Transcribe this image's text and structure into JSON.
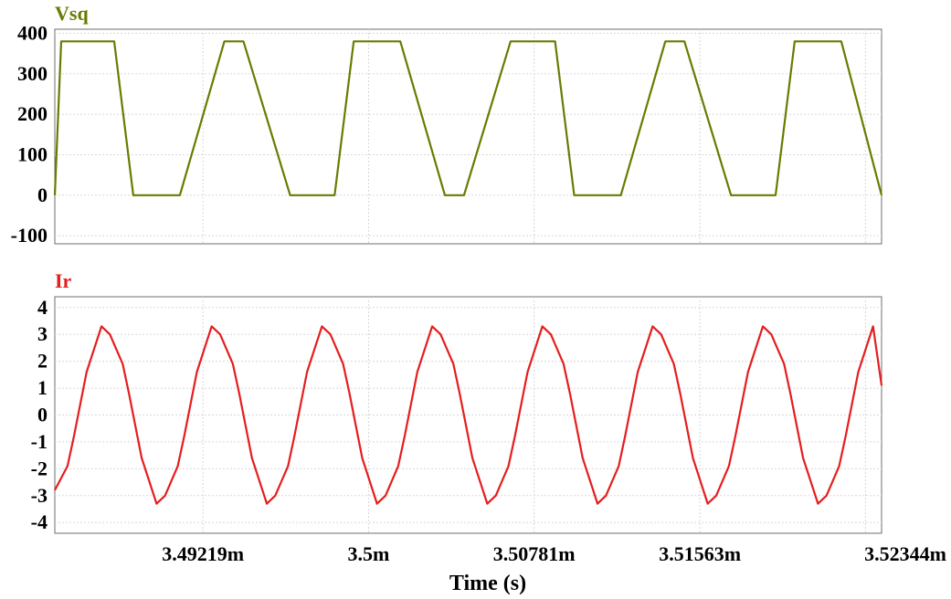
{
  "x_axis": {
    "title": "Time (s)",
    "ticks": [
      {
        "value": 3.49219,
        "label": "3.49219m"
      },
      {
        "value": 3.5,
        "label": "3.5m"
      },
      {
        "value": 3.50781,
        "label": "3.50781m"
      },
      {
        "value": 3.51563,
        "label": "3.51563m"
      },
      {
        "value": 3.52344,
        "label": "3.52344m"
      }
    ]
  },
  "chart_data": [
    {
      "type": "line",
      "title": "Vsq",
      "color": "#6b7a00",
      "x_unit": "ms",
      "xlim": [
        3.4852,
        3.5242
      ],
      "ylim": [
        -120,
        410
      ],
      "grid": true,
      "yticks": [
        {
          "value": 400,
          "label": "400"
        },
        {
          "value": 300,
          "label": "300"
        },
        {
          "value": 200,
          "label": "200"
        },
        {
          "value": 100,
          "label": "100"
        },
        {
          "value": 0,
          "label": "0"
        },
        {
          "value": -100,
          "label": "-100"
        }
      ],
      "series": [
        {
          "name": "Vsq",
          "x": [
            3.4852,
            3.4855,
            3.488,
            3.4889,
            3.4911,
            3.4932,
            3.4941,
            3.4963,
            3.4984,
            3.4993,
            3.5015,
            3.5036,
            3.5045,
            3.5067,
            3.5088,
            3.5097,
            3.5119,
            3.514,
            3.5149,
            3.5171,
            3.5192,
            3.5201,
            3.5223,
            3.5242
          ],
          "values": [
            0,
            380,
            380,
            0,
            0,
            380,
            380,
            0,
            0,
            380,
            380,
            0,
            0,
            380,
            380,
            0,
            0,
            380,
            380,
            0,
            0,
            380,
            380,
            0
          ]
        }
      ]
    },
    {
      "type": "line",
      "title": "Ir",
      "color": "#e41e1e",
      "x_unit": "ms",
      "xlim": [
        3.4852,
        3.5242
      ],
      "ylim": [
        -4.4,
        4.4
      ],
      "grid": true,
      "yticks": [
        {
          "value": 4,
          "label": "4"
        },
        {
          "value": 3,
          "label": "3"
        },
        {
          "value": 2,
          "label": "2"
        },
        {
          "value": 1,
          "label": "1"
        },
        {
          "value": 0,
          "label": "0"
        },
        {
          "value": -1,
          "label": "-1"
        },
        {
          "value": -2,
          "label": "-2"
        },
        {
          "value": -3,
          "label": "-3"
        },
        {
          "value": -4,
          "label": "-4"
        }
      ],
      "series": [
        {
          "name": "Ir",
          "x": [
            3.4852,
            3.4858,
            3.4861,
            3.4867,
            3.4874,
            3.4878,
            3.4884,
            3.4887,
            3.4893,
            3.49,
            3.4904,
            3.491,
            3.4913,
            3.4919,
            3.4926,
            3.493,
            3.4936,
            3.4939,
            3.4945,
            3.4952,
            3.4956,
            3.4962,
            3.4965,
            3.4971,
            3.4978,
            3.4982,
            3.4988,
            3.4991,
            3.4997,
            3.5004,
            3.5008,
            3.5014,
            3.5017,
            3.5023,
            3.503,
            3.5034,
            3.504,
            3.5043,
            3.5049,
            3.5056,
            3.506,
            3.5066,
            3.5069,
            3.5075,
            3.5082,
            3.5086,
            3.5092,
            3.5095,
            3.5101,
            3.5108,
            3.5112,
            3.5118,
            3.5121,
            3.5127,
            3.5134,
            3.5138,
            3.5144,
            3.5147,
            3.5153,
            3.516,
            3.5164,
            3.517,
            3.5173,
            3.5179,
            3.5186,
            3.519,
            3.5196,
            3.5199,
            3.5205,
            3.5212,
            3.5216,
            3.5222,
            3.5225,
            3.5231,
            3.5238,
            3.5242
          ],
          "values": [
            -2.8,
            -1.9,
            -0.8,
            1.6,
            3.3,
            3.0,
            1.9,
            0.8,
            -1.6,
            -3.3,
            -3.0,
            -1.9,
            -0.8,
            1.6,
            3.3,
            3.0,
            1.9,
            0.8,
            -1.6,
            -3.3,
            -3.0,
            -1.9,
            -0.8,
            1.6,
            3.3,
            3.0,
            1.9,
            0.8,
            -1.6,
            -3.3,
            -3.0,
            -1.9,
            -0.8,
            1.6,
            3.3,
            3.0,
            1.9,
            0.8,
            -1.6,
            -3.3,
            -3.0,
            -1.9,
            -0.8,
            1.6,
            3.3,
            3.0,
            1.9,
            0.8,
            -1.6,
            -3.3,
            -3.0,
            -1.9,
            -0.8,
            1.6,
            3.3,
            3.0,
            1.9,
            0.8,
            -1.6,
            -3.3,
            -3.0,
            -1.9,
            -0.8,
            1.6,
            3.3,
            3.0,
            1.9,
            0.8,
            -1.6,
            -3.3,
            -3.0,
            -1.9,
            -0.8,
            1.6,
            3.3,
            1.1
          ]
        }
      ]
    }
  ]
}
